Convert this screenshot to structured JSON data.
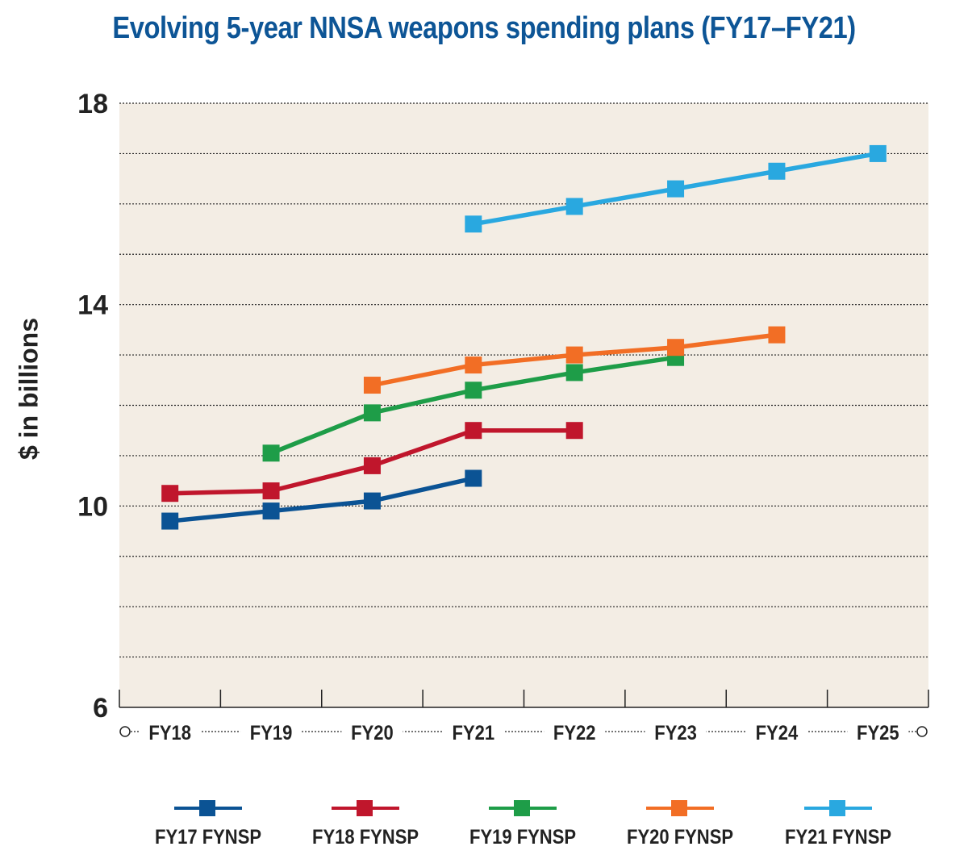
{
  "chart_data": {
    "type": "line",
    "title": "Evolving 5-year NNSA weapons spending plans (FY17–FY21)",
    "ylabel": "$ in billions",
    "xlabel": "",
    "categories": [
      "FY18",
      "FY19",
      "FY20",
      "FY21",
      "FY22",
      "FY23",
      "FY24",
      "FY25"
    ],
    "ylim": [
      6,
      18
    ],
    "yticks": [
      "6",
      "10",
      "14",
      "18"
    ],
    "grid": true,
    "legend_position": "bottom",
    "series": [
      {
        "name": "FY17 FYNSP",
        "color": "#0b5394",
        "x": [
          "FY18",
          "FY19",
          "FY20",
          "FY21"
        ],
        "values": [
          9.7,
          9.9,
          10.1,
          10.55
        ]
      },
      {
        "name": "FY18 FYNSP",
        "color": "#c0162c",
        "x": [
          "FY18",
          "FY19",
          "FY20",
          "FY21",
          "FY22"
        ],
        "values": [
          10.25,
          10.3,
          10.8,
          11.5,
          11.5
        ]
      },
      {
        "name": "FY19 FYNSP",
        "color": "#1e9d48",
        "x": [
          "FY19",
          "FY20",
          "FY21",
          "FY22",
          "FY23"
        ],
        "values": [
          11.05,
          11.85,
          12.3,
          12.65,
          12.95
        ]
      },
      {
        "name": "FY20 FYNSP",
        "color": "#f26e25",
        "x": [
          "FY20",
          "FY21",
          "FY22",
          "FY23",
          "FY24"
        ],
        "values": [
          12.4,
          12.8,
          13.0,
          13.15,
          13.4
        ]
      },
      {
        "name": "FY21 FYNSP",
        "color": "#29a8e0",
        "x": [
          "FY21",
          "FY22",
          "FY23",
          "FY24",
          "FY25"
        ],
        "values": [
          15.6,
          15.95,
          16.3,
          16.65,
          17.0
        ]
      }
    ]
  }
}
